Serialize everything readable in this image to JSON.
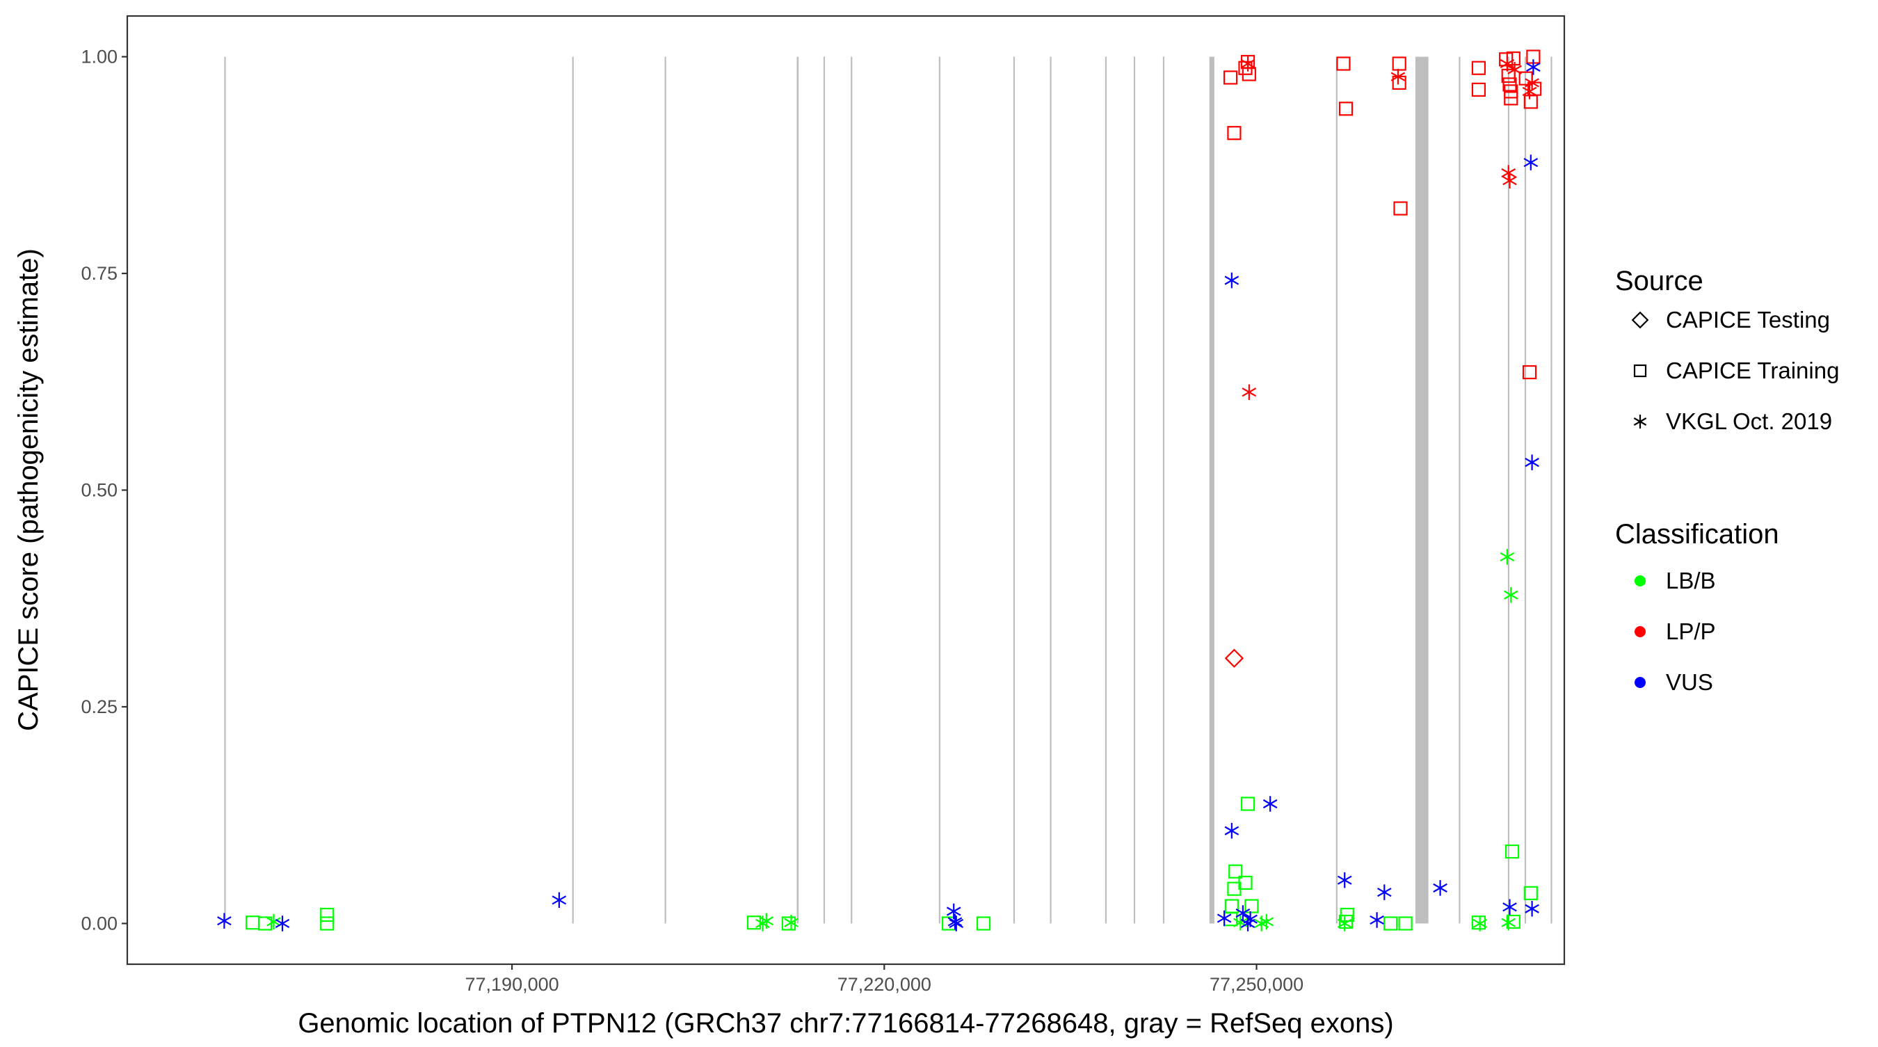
{
  "chart_data": {
    "type": "scatter",
    "xlabel": "Genomic location of PTPN12 (GRCh37 chr7:77166814-77268648, gray = RefSeq exons)",
    "ylabel": "CAPICE score (pathogenicity estimate)",
    "xlim": [
      77159000,
      77274800
    ],
    "ylim": [
      -0.047,
      1.047
    ],
    "x_ticks": [
      77190000,
      77220000,
      77250000
    ],
    "x_tick_labels": [
      "77,190,000",
      "77,220,000",
      "77,250,000"
    ],
    "y_ticks": [
      0,
      0.25,
      0.5,
      0.75,
      1
    ],
    "y_tick_labels": [
      "0.00",
      "0.25",
      "0.50",
      "0.75",
      "1.00"
    ],
    "grid": false,
    "legend_placement": "right",
    "exon_color": "#bebebe",
    "exons": [
      [
        77166814,
        77166900
      ],
      [
        77194850,
        77194900
      ],
      [
        77202300,
        77202350
      ],
      [
        77212950,
        77213100
      ],
      [
        77215100,
        77215150
      ],
      [
        77217300,
        77217350
      ],
      [
        77224400,
        77224450
      ],
      [
        77230400,
        77230450
      ],
      [
        77233350,
        77233450
      ],
      [
        77237800,
        77237850
      ],
      [
        77240100,
        77240200
      ],
      [
        77242450,
        77242500
      ],
      [
        77246200,
        77246600
      ],
      [
        77256400,
        77256450
      ],
      [
        77262800,
        77263850
      ],
      [
        77266300,
        77266350
      ],
      [
        77270250,
        77270300
      ],
      [
        77271600,
        77271650
      ],
      [
        77273700,
        77273800
      ]
    ],
    "legend": {
      "source_title": "Source",
      "source_items": [
        {
          "label": "CAPICE Testing",
          "shape": "diamond"
        },
        {
          "label": "CAPICE Training",
          "shape": "square"
        },
        {
          "label": "VKGL Oct. 2019",
          "shape": "asterisk"
        }
      ],
      "classification_title": "Classification",
      "classification_items": [
        {
          "label": "LB/B",
          "color": "#00ff00"
        },
        {
          "label": "LP/P",
          "color": "#ff0000"
        },
        {
          "label": "VUS",
          "color": "#0000ff"
        }
      ]
    },
    "series": [
      {
        "name": "LB/B",
        "color": "#00ff00",
        "points": [
          {
            "x": 77169100,
            "y": 0.001,
            "shape": "square"
          },
          {
            "x": 77170100,
            "y": 0.0,
            "shape": "square"
          },
          {
            "x": 77170800,
            "y": 0.002,
            "shape": "asterisk"
          },
          {
            "x": 77175100,
            "y": 0.01,
            "shape": "square"
          },
          {
            "x": 77175100,
            "y": 0.0,
            "shape": "square"
          },
          {
            "x": 77209500,
            "y": 0.001,
            "shape": "square"
          },
          {
            "x": 77210200,
            "y": 0.0,
            "shape": "asterisk"
          },
          {
            "x": 77210500,
            "y": 0.003,
            "shape": "asterisk"
          },
          {
            "x": 77212300,
            "y": 0.0,
            "shape": "square"
          },
          {
            "x": 77212500,
            "y": 0.001,
            "shape": "asterisk"
          },
          {
            "x": 77225200,
            "y": 0.0,
            "shape": "square"
          },
          {
            "x": 77228000,
            "y": 0.0,
            "shape": "square"
          },
          {
            "x": 77247900,
            "y": 0.005,
            "shape": "square"
          },
          {
            "x": 77248000,
            "y": 0.02,
            "shape": "square"
          },
          {
            "x": 77248200,
            "y": 0.04,
            "shape": "square"
          },
          {
            "x": 77248300,
            "y": 0.06,
            "shape": "square"
          },
          {
            "x": 77248700,
            "y": 0.001,
            "shape": "asterisk"
          },
          {
            "x": 77249100,
            "y": 0.047,
            "shape": "square"
          },
          {
            "x": 77249300,
            "y": 0.138,
            "shape": "square"
          },
          {
            "x": 77249600,
            "y": 0.02,
            "shape": "square"
          },
          {
            "x": 77250400,
            "y": 0.0,
            "shape": "asterisk"
          },
          {
            "x": 77250800,
            "y": 0.002,
            "shape": "asterisk"
          },
          {
            "x": 77257100,
            "y": 0.0,
            "shape": "asterisk"
          },
          {
            "x": 77257200,
            "y": 0.002,
            "shape": "square"
          },
          {
            "x": 77257300,
            "y": 0.01,
            "shape": "square"
          },
          {
            "x": 77260800,
            "y": 0.0,
            "shape": "square"
          },
          {
            "x": 77262000,
            "y": 0.0,
            "shape": "square"
          },
          {
            "x": 77267900,
            "y": 0.001,
            "shape": "square"
          },
          {
            "x": 77268000,
            "y": 0.0,
            "shape": "asterisk"
          },
          {
            "x": 77270200,
            "y": 0.423,
            "shape": "asterisk"
          },
          {
            "x": 77270500,
            "y": 0.379,
            "shape": "asterisk"
          },
          {
            "x": 77270600,
            "y": 0.083,
            "shape": "square"
          },
          {
            "x": 77270300,
            "y": 0.001,
            "shape": "asterisk"
          },
          {
            "x": 77270700,
            "y": 0.002,
            "shape": "square"
          },
          {
            "x": 77272100,
            "y": 0.035,
            "shape": "square"
          }
        ]
      },
      {
        "name": "LP/P",
        "color": "#ff0000",
        "points": [
          {
            "x": 77247900,
            "y": 0.976,
            "shape": "square"
          },
          {
            "x": 77248200,
            "y": 0.912,
            "shape": "square"
          },
          {
            "x": 77248200,
            "y": 0.306,
            "shape": "diamond"
          },
          {
            "x": 77249100,
            "y": 0.987,
            "shape": "square"
          },
          {
            "x": 77249300,
            "y": 0.994,
            "shape": "square"
          },
          {
            "x": 77249400,
            "y": 0.98,
            "shape": "square"
          },
          {
            "x": 77249300,
            "y": 0.992,
            "shape": "asterisk"
          },
          {
            "x": 77249400,
            "y": 0.613,
            "shape": "asterisk"
          },
          {
            "x": 77257000,
            "y": 0.992,
            "shape": "square"
          },
          {
            "x": 77257200,
            "y": 0.94,
            "shape": "square"
          },
          {
            "x": 77261500,
            "y": 0.992,
            "shape": "square"
          },
          {
            "x": 77261400,
            "y": 0.977,
            "shape": "asterisk"
          },
          {
            "x": 77261500,
            "y": 0.97,
            "shape": "square"
          },
          {
            "x": 77261600,
            "y": 0.825,
            "shape": "square"
          },
          {
            "x": 77267900,
            "y": 0.987,
            "shape": "square"
          },
          {
            "x": 77267900,
            "y": 0.962,
            "shape": "square"
          },
          {
            "x": 77270100,
            "y": 0.997,
            "shape": "square"
          },
          {
            "x": 77270200,
            "y": 0.992,
            "shape": "asterisk"
          },
          {
            "x": 77270300,
            "y": 0.978,
            "shape": "square"
          },
          {
            "x": 77270400,
            "y": 0.968,
            "shape": "square"
          },
          {
            "x": 77270500,
            "y": 0.96,
            "shape": "square"
          },
          {
            "x": 77270500,
            "y": 0.952,
            "shape": "square"
          },
          {
            "x": 77270300,
            "y": 0.866,
            "shape": "asterisk"
          },
          {
            "x": 77270400,
            "y": 0.857,
            "shape": "asterisk"
          },
          {
            "x": 77270700,
            "y": 0.998,
            "shape": "square"
          },
          {
            "x": 77270800,
            "y": 0.985,
            "shape": "asterisk"
          },
          {
            "x": 77271700,
            "y": 0.975,
            "shape": "square"
          },
          {
            "x": 77272000,
            "y": 0.96,
            "shape": "asterisk"
          },
          {
            "x": 77272100,
            "y": 0.948,
            "shape": "square"
          },
          {
            "x": 77272200,
            "y": 0.97,
            "shape": "asterisk"
          },
          {
            "x": 77272300,
            "y": 1.0,
            "shape": "square"
          },
          {
            "x": 77272400,
            "y": 0.963,
            "shape": "square"
          },
          {
            "x": 77272000,
            "y": 0.636,
            "shape": "square"
          }
        ]
      },
      {
        "name": "VUS",
        "color": "#0000ff",
        "points": [
          {
            "x": 77166814,
            "y": 0.003,
            "shape": "asterisk"
          },
          {
            "x": 77171500,
            "y": 0.0,
            "shape": "asterisk"
          },
          {
            "x": 77193800,
            "y": 0.027,
            "shape": "asterisk"
          },
          {
            "x": 77225600,
            "y": 0.014,
            "shape": "asterisk"
          },
          {
            "x": 77225700,
            "y": 0.002,
            "shape": "asterisk"
          },
          {
            "x": 77225800,
            "y": 0.0,
            "shape": "asterisk"
          },
          {
            "x": 77247400,
            "y": 0.006,
            "shape": "asterisk"
          },
          {
            "x": 77248000,
            "y": 0.742,
            "shape": "asterisk"
          },
          {
            "x": 77248000,
            "y": 0.107,
            "shape": "asterisk"
          },
          {
            "x": 77248900,
            "y": 0.012,
            "shape": "asterisk"
          },
          {
            "x": 77249300,
            "y": 0.0,
            "shape": "asterisk"
          },
          {
            "x": 77249500,
            "y": 0.005,
            "shape": "asterisk"
          },
          {
            "x": 77251100,
            "y": 0.138,
            "shape": "asterisk"
          },
          {
            "x": 77257100,
            "y": 0.05,
            "shape": "asterisk"
          },
          {
            "x": 77259700,
            "y": 0.004,
            "shape": "asterisk"
          },
          {
            "x": 77260300,
            "y": 0.036,
            "shape": "asterisk"
          },
          {
            "x": 77264800,
            "y": 0.041,
            "shape": "asterisk"
          },
          {
            "x": 77270400,
            "y": 0.019,
            "shape": "asterisk"
          },
          {
            "x": 77272100,
            "y": 0.878,
            "shape": "asterisk"
          },
          {
            "x": 77272200,
            "y": 0.532,
            "shape": "asterisk"
          },
          {
            "x": 77272300,
            "y": 0.988,
            "shape": "asterisk"
          },
          {
            "x": 77272200,
            "y": 0.017,
            "shape": "asterisk"
          }
        ]
      }
    ]
  }
}
